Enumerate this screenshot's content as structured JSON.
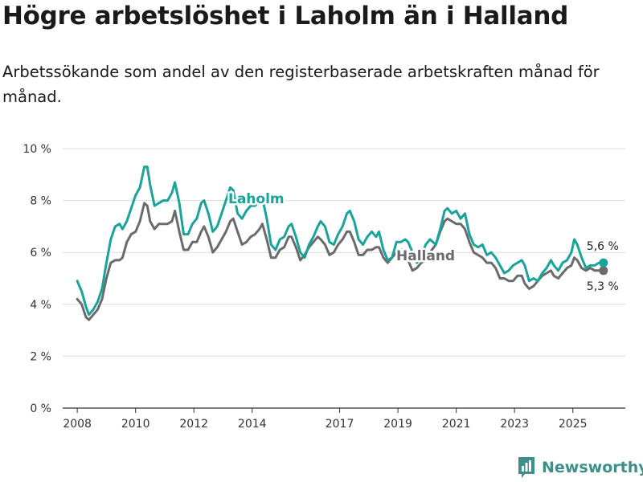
{
  "header": {
    "title": "Högre arbetslöshet i Laholm än i Halland",
    "subtitle": "Arbetssökande som andel av den registerbaserade arbetskraften månad för månad."
  },
  "brand": {
    "name": "Newsworthy"
  },
  "colors": {
    "laholm": "#1aa398",
    "halland": "#6b6b6e",
    "grid": "#dcdcdc",
    "axis": "#333333"
  },
  "chart_data": {
    "type": "line",
    "title": "Högre arbetslöshet i Laholm än i Halland",
    "subtitle": "Arbetssökande som andel av den registerbaserade arbetskraften månad för månad.",
    "xlabel": "",
    "ylabel": "",
    "ylim": [
      0,
      10
    ],
    "xlim": [
      2007.5,
      2026.8
    ],
    "grid": true,
    "yticks": [
      0,
      2,
      4,
      6,
      8,
      10
    ],
    "ytick_labels": [
      "0 %",
      "2 %",
      "4 %",
      "6 %",
      "8 %",
      "10 %"
    ],
    "xticks": [
      2008,
      2010,
      2012,
      2014,
      2017,
      2019,
      2021,
      2023,
      2025
    ],
    "xtick_labels": [
      "2008",
      "2010",
      "2012",
      "2014",
      "2017",
      "2019",
      "2021",
      "2023",
      "2025"
    ],
    "series": [
      {
        "name": "Laholm",
        "label": "Laholm",
        "color": "#1aa398",
        "end_label": "5,6 %",
        "points": [
          [
            2008.0,
            4.9
          ],
          [
            2008.15,
            4.5
          ],
          [
            2008.3,
            3.9
          ],
          [
            2008.4,
            3.6
          ],
          [
            2008.55,
            3.8
          ],
          [
            2008.7,
            4.1
          ],
          [
            2008.85,
            4.6
          ],
          [
            2009.0,
            5.6
          ],
          [
            2009.15,
            6.5
          ],
          [
            2009.3,
            7.0
          ],
          [
            2009.45,
            7.1
          ],
          [
            2009.55,
            6.9
          ],
          [
            2009.7,
            7.2
          ],
          [
            2009.85,
            7.7
          ],
          [
            2010.0,
            8.2
          ],
          [
            2010.15,
            8.5
          ],
          [
            2010.3,
            9.3
          ],
          [
            2010.4,
            9.3
          ],
          [
            2010.5,
            8.6
          ],
          [
            2010.65,
            7.8
          ],
          [
            2010.8,
            7.9
          ],
          [
            2010.95,
            8.0
          ],
          [
            2011.1,
            8.0
          ],
          [
            2011.25,
            8.3
          ],
          [
            2011.35,
            8.7
          ],
          [
            2011.5,
            7.9
          ],
          [
            2011.65,
            6.7
          ],
          [
            2011.8,
            6.7
          ],
          [
            2011.95,
            7.1
          ],
          [
            2012.1,
            7.3
          ],
          [
            2012.25,
            7.9
          ],
          [
            2012.35,
            8.0
          ],
          [
            2012.5,
            7.5
          ],
          [
            2012.65,
            6.8
          ],
          [
            2012.8,
            7.0
          ],
          [
            2012.95,
            7.5
          ],
          [
            2013.1,
            8.0
          ],
          [
            2013.25,
            8.5
          ],
          [
            2013.35,
            8.4
          ],
          [
            2013.5,
            7.5
          ],
          [
            2013.65,
            7.3
          ],
          [
            2013.8,
            7.6
          ],
          [
            2013.95,
            7.8
          ],
          [
            2014.1,
            7.8
          ],
          [
            2014.25,
            8.0
          ],
          [
            2014.35,
            8.1
          ],
          [
            2014.5,
            7.3
          ],
          [
            2014.65,
            6.3
          ],
          [
            2014.8,
            6.1
          ],
          [
            2014.95,
            6.5
          ],
          [
            2015.1,
            6.6
          ],
          [
            2015.25,
            7.0
          ],
          [
            2015.35,
            7.1
          ],
          [
            2015.5,
            6.6
          ],
          [
            2015.65,
            6.0
          ],
          [
            2015.8,
            5.8
          ],
          [
            2015.95,
            6.3
          ],
          [
            2016.1,
            6.6
          ],
          [
            2016.25,
            7.0
          ],
          [
            2016.35,
            7.2
          ],
          [
            2016.5,
            7.0
          ],
          [
            2016.65,
            6.4
          ],
          [
            2016.8,
            6.3
          ],
          [
            2016.95,
            6.7
          ],
          [
            2017.1,
            7.0
          ],
          [
            2017.25,
            7.5
          ],
          [
            2017.35,
            7.6
          ],
          [
            2017.5,
            7.2
          ],
          [
            2017.65,
            6.5
          ],
          [
            2017.8,
            6.3
          ],
          [
            2017.95,
            6.6
          ],
          [
            2018.1,
            6.8
          ],
          [
            2018.25,
            6.6
          ],
          [
            2018.35,
            6.8
          ],
          [
            2018.5,
            6.1
          ],
          [
            2018.65,
            5.7
          ],
          [
            2018.8,
            5.8
          ],
          [
            2018.95,
            6.4
          ],
          [
            2019.1,
            6.4
          ],
          [
            2019.25,
            6.5
          ],
          [
            2019.35,
            6.4
          ],
          [
            2019.5,
            6.0
          ],
          [
            2019.65,
            5.6
          ],
          [
            2019.8,
            5.8
          ],
          [
            2019.95,
            6.3
          ],
          [
            2020.1,
            6.5
          ],
          [
            2020.3,
            6.3
          ],
          [
            2020.45,
            6.9
          ],
          [
            2020.6,
            7.6
          ],
          [
            2020.7,
            7.7
          ],
          [
            2020.85,
            7.5
          ],
          [
            2021.0,
            7.6
          ],
          [
            2021.15,
            7.3
          ],
          [
            2021.3,
            7.5
          ],
          [
            2021.45,
            6.7
          ],
          [
            2021.6,
            6.3
          ],
          [
            2021.75,
            6.2
          ],
          [
            2021.9,
            6.3
          ],
          [
            2022.05,
            5.9
          ],
          [
            2022.2,
            6.0
          ],
          [
            2022.35,
            5.8
          ],
          [
            2022.5,
            5.5
          ],
          [
            2022.65,
            5.2
          ],
          [
            2022.8,
            5.3
          ],
          [
            2022.95,
            5.5
          ],
          [
            2023.1,
            5.6
          ],
          [
            2023.25,
            5.7
          ],
          [
            2023.35,
            5.5
          ],
          [
            2023.5,
            4.9
          ],
          [
            2023.65,
            5.0
          ],
          [
            2023.8,
            4.9
          ],
          [
            2023.95,
            5.2
          ],
          [
            2024.1,
            5.4
          ],
          [
            2024.25,
            5.7
          ],
          [
            2024.35,
            5.5
          ],
          [
            2024.5,
            5.3
          ],
          [
            2024.65,
            5.6
          ],
          [
            2024.8,
            5.7
          ],
          [
            2024.95,
            6.0
          ],
          [
            2025.05,
            6.5
          ],
          [
            2025.15,
            6.3
          ],
          [
            2025.3,
            5.8
          ],
          [
            2025.45,
            5.4
          ],
          [
            2025.6,
            5.5
          ],
          [
            2025.75,
            5.5
          ],
          [
            2025.9,
            5.6
          ],
          [
            2026.05,
            5.6
          ]
        ]
      },
      {
        "name": "Halland",
        "label": "Halland",
        "color": "#6b6b6e",
        "end_label": "5,3 %",
        "points": [
          [
            2008.0,
            4.2
          ],
          [
            2008.15,
            4.0
          ],
          [
            2008.3,
            3.5
          ],
          [
            2008.4,
            3.4
          ],
          [
            2008.55,
            3.6
          ],
          [
            2008.7,
            3.8
          ],
          [
            2008.85,
            4.2
          ],
          [
            2009.0,
            5.0
          ],
          [
            2009.15,
            5.6
          ],
          [
            2009.3,
            5.7
          ],
          [
            2009.45,
            5.7
          ],
          [
            2009.55,
            5.8
          ],
          [
            2009.7,
            6.4
          ],
          [
            2009.85,
            6.7
          ],
          [
            2010.0,
            6.8
          ],
          [
            2010.15,
            7.2
          ],
          [
            2010.3,
            7.9
          ],
          [
            2010.4,
            7.8
          ],
          [
            2010.5,
            7.2
          ],
          [
            2010.65,
            6.9
          ],
          [
            2010.8,
            7.1
          ],
          [
            2010.95,
            7.1
          ],
          [
            2011.1,
            7.1
          ],
          [
            2011.25,
            7.2
          ],
          [
            2011.35,
            7.6
          ],
          [
            2011.5,
            6.8
          ],
          [
            2011.65,
            6.1
          ],
          [
            2011.8,
            6.1
          ],
          [
            2011.95,
            6.4
          ],
          [
            2012.1,
            6.4
          ],
          [
            2012.25,
            6.8
          ],
          [
            2012.35,
            7.0
          ],
          [
            2012.5,
            6.6
          ],
          [
            2012.65,
            6.0
          ],
          [
            2012.8,
            6.2
          ],
          [
            2012.95,
            6.5
          ],
          [
            2013.1,
            6.8
          ],
          [
            2013.25,
            7.2
          ],
          [
            2013.35,
            7.3
          ],
          [
            2013.5,
            6.8
          ],
          [
            2013.65,
            6.3
          ],
          [
            2013.8,
            6.4
          ],
          [
            2013.95,
            6.6
          ],
          [
            2014.1,
            6.7
          ],
          [
            2014.25,
            6.9
          ],
          [
            2014.35,
            7.1
          ],
          [
            2014.5,
            6.5
          ],
          [
            2014.65,
            5.8
          ],
          [
            2014.8,
            5.8
          ],
          [
            2014.95,
            6.1
          ],
          [
            2015.1,
            6.2
          ],
          [
            2015.25,
            6.6
          ],
          [
            2015.35,
            6.6
          ],
          [
            2015.5,
            6.2
          ],
          [
            2015.65,
            5.7
          ],
          [
            2015.8,
            5.9
          ],
          [
            2015.95,
            6.2
          ],
          [
            2016.1,
            6.4
          ],
          [
            2016.25,
            6.6
          ],
          [
            2016.35,
            6.5
          ],
          [
            2016.5,
            6.3
          ],
          [
            2016.65,
            5.9
          ],
          [
            2016.8,
            6.0
          ],
          [
            2016.95,
            6.3
          ],
          [
            2017.1,
            6.5
          ],
          [
            2017.25,
            6.8
          ],
          [
            2017.35,
            6.8
          ],
          [
            2017.5,
            6.4
          ],
          [
            2017.65,
            5.9
          ],
          [
            2017.8,
            5.9
          ],
          [
            2017.95,
            6.1
          ],
          [
            2018.1,
            6.1
          ],
          [
            2018.25,
            6.2
          ],
          [
            2018.35,
            6.2
          ],
          [
            2018.5,
            5.8
          ],
          [
            2018.65,
            5.6
          ],
          [
            2018.8,
            5.8
          ],
          [
            2018.95,
            6.0
          ],
          [
            2019.1,
            6.1
          ],
          [
            2019.25,
            6.1
          ],
          [
            2019.35,
            5.7
          ],
          [
            2019.5,
            5.3
          ],
          [
            2019.65,
            5.4
          ],
          [
            2019.8,
            5.6
          ],
          [
            2019.95,
            5.7
          ],
          [
            2020.1,
            6.0
          ],
          [
            2020.3,
            6.3
          ],
          [
            2020.45,
            6.8
          ],
          [
            2020.6,
            7.2
          ],
          [
            2020.7,
            7.3
          ],
          [
            2020.85,
            7.2
          ],
          [
            2021.0,
            7.1
          ],
          [
            2021.15,
            7.1
          ],
          [
            2021.3,
            6.9
          ],
          [
            2021.45,
            6.4
          ],
          [
            2021.6,
            6.0
          ],
          [
            2021.75,
            5.9
          ],
          [
            2021.9,
            5.8
          ],
          [
            2022.05,
            5.6
          ],
          [
            2022.2,
            5.6
          ],
          [
            2022.35,
            5.4
          ],
          [
            2022.5,
            5.0
          ],
          [
            2022.65,
            5.0
          ],
          [
            2022.8,
            4.9
          ],
          [
            2022.95,
            4.9
          ],
          [
            2023.1,
            5.1
          ],
          [
            2023.25,
            5.1
          ],
          [
            2023.35,
            4.8
          ],
          [
            2023.5,
            4.6
          ],
          [
            2023.65,
            4.7
          ],
          [
            2023.8,
            4.9
          ],
          [
            2023.95,
            5.1
          ],
          [
            2024.1,
            5.2
          ],
          [
            2024.25,
            5.3
          ],
          [
            2024.35,
            5.1
          ],
          [
            2024.5,
            5.0
          ],
          [
            2024.65,
            5.2
          ],
          [
            2024.8,
            5.4
          ],
          [
            2024.95,
            5.5
          ],
          [
            2025.05,
            5.8
          ],
          [
            2025.15,
            5.7
          ],
          [
            2025.3,
            5.4
          ],
          [
            2025.45,
            5.3
          ],
          [
            2025.6,
            5.4
          ],
          [
            2025.75,
            5.3
          ],
          [
            2025.9,
            5.3
          ],
          [
            2026.05,
            5.3
          ]
        ]
      }
    ]
  }
}
